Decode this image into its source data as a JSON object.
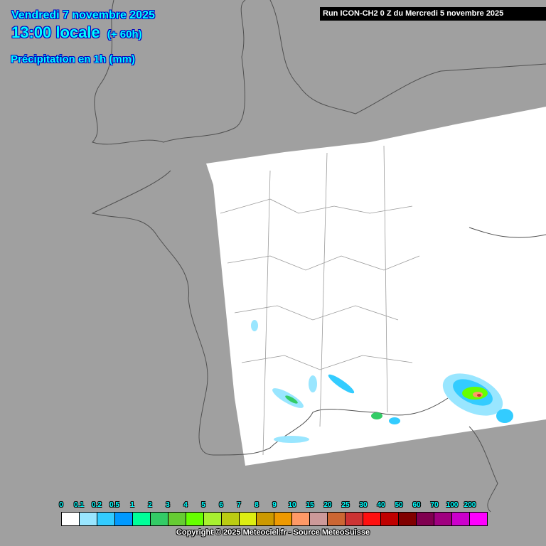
{
  "header": {
    "date": "Vendredi 7 novembre 2025",
    "time": "13:00 locale",
    "lead": "(+ 60h)",
    "parameter": "Précipitation en 1h (mm)",
    "run": "Run ICON-CH2 0 Z du Mercredi 5 novembre 2025"
  },
  "legend": {
    "labels": [
      "0",
      "0.1",
      "0.2",
      "0.5",
      "1",
      "2",
      "3",
      "4",
      "5",
      "6",
      "7",
      "8",
      "9",
      "10",
      "15",
      "20",
      "25",
      "30",
      "40",
      "50",
      "60",
      "70",
      "100",
      "200"
    ],
    "colors": [
      "#ffffff",
      "#99e6ff",
      "#33ccff",
      "#0099ff",
      "#00ff99",
      "#33cc66",
      "#66cc33",
      "#66ff00",
      "#a8f030",
      "#bbcc11",
      "#dded11",
      "#cc9900",
      "#ee9900",
      "#ff9966",
      "#cc9999",
      "#cc6633",
      "#cc3333",
      "#ff0f0f",
      "#c00000",
      "#800000",
      "#800050",
      "#a00080",
      "#cc00cc",
      "#ff00ff"
    ]
  },
  "colors": {
    "background": "#a0a0a0",
    "domain": "#ffffff",
    "title": "#00ffff"
  },
  "copyright": "Copyright © 2025 Meteociel.fr - Source MeteoSuisse"
}
